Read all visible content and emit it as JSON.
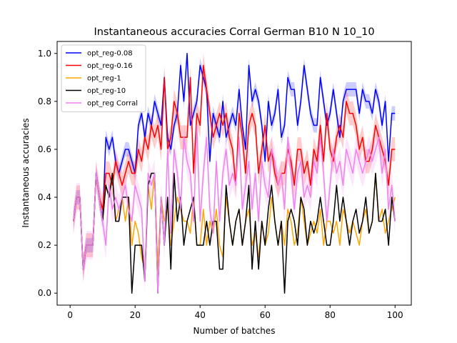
{
  "chart_data": {
    "type": "line",
    "title": "Instantaneous accuracies Corral German B10 N 10_10",
    "xlabel": "Number of batches",
    "ylabel": "Instantaneous accuracies",
    "xlim": [
      -4,
      105
    ],
    "ylim": [
      -0.05,
      1.05
    ],
    "xticks": [
      0,
      20,
      40,
      60,
      80,
      100
    ],
    "yticks": [
      0.0,
      0.2,
      0.4,
      0.6,
      0.8,
      1.0
    ],
    "grid": false,
    "legend_position": "top-left",
    "x": [
      1,
      2,
      3,
      4,
      5,
      6,
      7,
      8,
      9,
      10,
      11,
      12,
      13,
      14,
      15,
      16,
      17,
      18,
      19,
      20,
      21,
      22,
      23,
      24,
      25,
      26,
      27,
      28,
      29,
      30,
      31,
      32,
      33,
      34,
      35,
      36,
      37,
      38,
      39,
      40,
      41,
      42,
      43,
      44,
      45,
      46,
      47,
      48,
      49,
      50,
      51,
      52,
      53,
      54,
      55,
      56,
      57,
      58,
      59,
      60,
      61,
      62,
      63,
      64,
      65,
      66,
      67,
      68,
      69,
      70,
      71,
      72,
      73,
      74,
      75,
      76,
      77,
      78,
      79,
      80,
      81,
      82,
      83,
      84,
      85,
      86,
      87,
      88,
      89,
      90,
      91,
      92,
      93,
      94,
      95,
      96,
      97,
      98,
      99,
      100
    ],
    "series": [
      {
        "name": "opt_reg-0.08",
        "color": "#0000ff",
        "band": 0.03,
        "values": [
          0.3,
          0.4,
          0.4,
          0.1,
          0.2,
          0.2,
          0.2,
          0.5,
          0.4,
          0.3,
          0.65,
          0.6,
          0.65,
          0.55,
          0.5,
          0.55,
          0.6,
          0.6,
          0.55,
          0.5,
          0.7,
          0.75,
          0.65,
          0.75,
          0.7,
          0.8,
          0.75,
          0.7,
          0.9,
          0.65,
          0.6,
          0.7,
          0.75,
          0.95,
          0.8,
          1.0,
          0.7,
          0.75,
          0.8,
          0.95,
          0.9,
          0.85,
          0.55,
          0.75,
          0.7,
          0.65,
          0.8,
          0.65,
          0.7,
          0.75,
          0.7,
          0.85,
          0.7,
          0.6,
          0.95,
          0.8,
          0.85,
          0.8,
          0.7,
          0.55,
          0.8,
          0.7,
          0.75,
          0.85,
          0.65,
          0.7,
          0.9,
          0.85,
          0.85,
          0.7,
          0.8,
          0.95,
          0.85,
          0.75,
          0.7,
          0.7,
          0.9,
          0.8,
          0.7,
          0.75,
          0.85,
          0.75,
          0.65,
          0.8,
          0.85,
          0.85,
          0.85,
          0.85,
          0.75,
          0.85,
          0.8,
          0.8,
          0.75,
          0.85,
          0.8,
          0.7,
          0.8,
          0.55,
          0.75,
          0.75
        ]
      },
      {
        "name": "opt_reg-0.16",
        "color": "#ff0000",
        "band": 0.05,
        "values": [
          0.3,
          0.4,
          0.4,
          0.1,
          0.2,
          0.2,
          0.2,
          0.5,
          0.4,
          0.35,
          0.5,
          0.5,
          0.45,
          0.55,
          0.5,
          0.45,
          0.5,
          0.55,
          0.5,
          0.5,
          0.6,
          0.55,
          0.65,
          0.6,
          0.7,
          0.65,
          0.7,
          0.6,
          0.9,
          0.6,
          0.65,
          0.8,
          0.75,
          0.65,
          0.65,
          0.65,
          0.9,
          0.5,
          0.75,
          0.7,
          0.95,
          0.85,
          0.75,
          0.65,
          0.7,
          0.75,
          0.7,
          0.75,
          0.65,
          0.6,
          0.45,
          0.75,
          0.65,
          0.5,
          0.7,
          0.75,
          0.7,
          0.5,
          0.6,
          0.7,
          0.55,
          0.6,
          0.5,
          0.45,
          0.5,
          0.5,
          0.6,
          0.55,
          0.45,
          0.6,
          0.6,
          0.5,
          0.55,
          0.45,
          0.6,
          0.55,
          0.7,
          0.55,
          0.75,
          0.6,
          0.55,
          0.65,
          0.7,
          0.65,
          0.8,
          0.75,
          0.75,
          0.7,
          0.6,
          0.65,
          0.55,
          0.55,
          0.6,
          0.7,
          0.65,
          0.6,
          0.55,
          0.45,
          0.6,
          0.6
        ]
      },
      {
        "name": "opt_reg-1",
        "color": "#ffa500",
        "band": 0.0,
        "values": [
          0.3,
          0.4,
          0.4,
          0.1,
          0.2,
          0.2,
          0.2,
          0.5,
          0.4,
          0.3,
          0.45,
          0.4,
          0.5,
          0.3,
          0.35,
          0.4,
          0.3,
          0.4,
          0.2,
          0.3,
          0.25,
          0.15,
          0.1,
          0.45,
          0.35,
          0.5,
          0.1,
          0.4,
          0.3,
          0.35,
          0.2,
          0.3,
          0.4,
          0.35,
          0.3,
          0.3,
          0.25,
          0.4,
          0.2,
          0.2,
          0.35,
          0.2,
          0.3,
          0.25,
          0.35,
          0.2,
          0.15,
          0.4,
          0.3,
          0.2,
          0.3,
          0.35,
          0.2,
          0.3,
          0.35,
          0.2,
          0.25,
          0.15,
          0.3,
          0.2,
          0.25,
          0.4,
          0.3,
          0.2,
          0.3,
          0.2,
          0.35,
          0.3,
          0.2,
          0.25,
          0.4,
          0.3,
          0.2,
          0.25,
          0.3,
          0.25,
          0.35,
          0.2,
          0.3,
          0.3,
          0.25,
          0.3,
          0.2,
          0.35,
          0.3,
          0.25,
          0.3,
          0.25,
          0.2,
          0.3,
          0.35,
          0.25,
          0.3,
          0.5,
          0.3,
          0.35,
          0.25,
          0.3,
          0.35,
          0.4
        ]
      },
      {
        "name": "opt_reg-10",
        "color": "#000000",
        "band": 0.0,
        "values": [
          0.3,
          0.4,
          0.4,
          0.1,
          0.2,
          0.2,
          0.2,
          0.5,
          0.4,
          0.3,
          0.45,
          0.4,
          0.5,
          0.3,
          0.3,
          0.4,
          0.4,
          0.4,
          0.0,
          0.2,
          0.2,
          0.2,
          0.05,
          0.45,
          0.5,
          0.5,
          0.0,
          0.4,
          0.2,
          0.4,
          0.1,
          0.5,
          0.3,
          0.4,
          0.2,
          0.3,
          0.35,
          0.4,
          0.2,
          0.2,
          0.2,
          0.3,
          0.2,
          0.3,
          0.3,
          0.1,
          0.1,
          0.45,
          0.3,
          0.2,
          0.3,
          0.35,
          0.2,
          0.3,
          0.45,
          0.1,
          0.3,
          0.1,
          0.3,
          0.2,
          0.35,
          0.45,
          0.3,
          0.2,
          0.3,
          0.0,
          0.3,
          0.35,
          0.3,
          0.2,
          0.4,
          0.35,
          0.2,
          0.3,
          0.25,
          0.3,
          0.4,
          0.3,
          0.2,
          0.2,
          0.3,
          0.45,
          0.3,
          0.4,
          0.3,
          0.2,
          0.3,
          0.35,
          0.25,
          0.3,
          0.4,
          0.25,
          0.3,
          0.5,
          0.3,
          0.3,
          0.35,
          0.2,
          0.4,
          0.3
        ]
      },
      {
        "name": "opt_reg Corral",
        "color": "#ee82ee",
        "band": 0.06,
        "values": [
          0.3,
          0.4,
          0.4,
          0.1,
          0.2,
          0.2,
          0.2,
          0.5,
          0.4,
          0.3,
          0.2,
          0.45,
          0.35,
          0.4,
          0.35,
          0.4,
          0.45,
          0.35,
          0.3,
          0.45,
          0.4,
          0.35,
          0.05,
          0.5,
          0.45,
          0.5,
          0.0,
          0.4,
          0.2,
          0.6,
          0.25,
          0.6,
          0.5,
          0.35,
          0.65,
          0.55,
          0.5,
          0.3,
          0.7,
          0.3,
          0.5,
          0.65,
          0.35,
          0.25,
          0.55,
          0.3,
          0.5,
          0.6,
          0.45,
          0.5,
          0.45,
          0.65,
          0.35,
          0.45,
          0.55,
          0.35,
          0.5,
          0.3,
          0.55,
          0.45,
          0.4,
          0.6,
          0.55,
          0.45,
          0.5,
          0.35,
          0.65,
          0.5,
          0.35,
          0.5,
          0.55,
          0.4,
          0.45,
          0.4,
          0.55,
          0.5,
          0.65,
          0.5,
          0.3,
          0.45,
          0.6,
          0.5,
          0.55,
          0.45,
          0.6,
          0.55,
          0.5,
          0.6,
          0.55,
          0.5,
          0.55,
          0.6,
          0.55,
          0.6,
          0.65,
          0.5,
          0.6,
          0.35,
          0.45,
          0.3
        ]
      }
    ]
  }
}
